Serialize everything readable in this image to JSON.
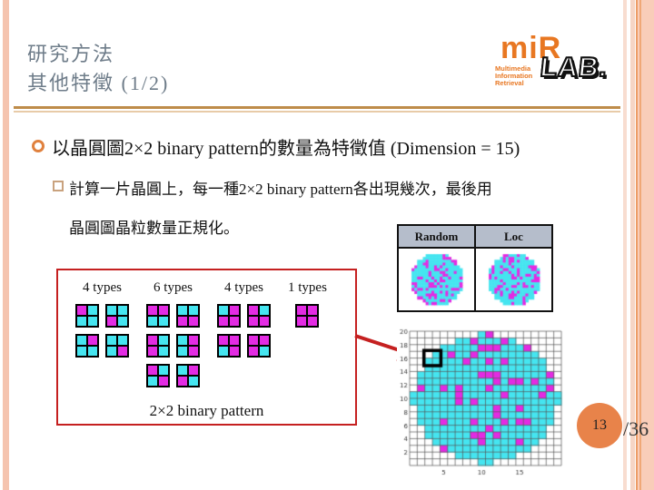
{
  "slide": {
    "title_line1": "研究方法",
    "title_line2": "其他特徵 (1/2)",
    "page_number": "13",
    "page_total": "/36"
  },
  "logo": {
    "name": "miR",
    "sub_lines": [
      "Multimedia",
      "Information",
      "Retrieval"
    ],
    "lab": "LAB."
  },
  "content": {
    "bullet": "以晶圓圖2×2 binary pattern的數量為特徵值 (Dimension = 15)",
    "sub_bullet_line1": "計算一片晶圓上，每一種2×2 binary pattern各出現幾次，最後用",
    "sub_bullet_line2": "晶圓圖晶粒數量正規化。"
  },
  "wafer_table": {
    "headers": [
      "Random",
      "Loc"
    ],
    "maps": [
      {
        "name": "random",
        "seed": 11,
        "defect_rate": 0.3
      },
      {
        "name": "loc",
        "seed": 23,
        "defect_rate": 0.24
      }
    ]
  },
  "pattern_box": {
    "groups": [
      {
        "label": "4 types",
        "columns": 2,
        "patterns": [
          [
            "M",
            "C",
            "C",
            "C"
          ],
          [
            "C",
            "C",
            "M",
            "C"
          ],
          [
            "C",
            "M",
            "C",
            "C"
          ],
          [
            "C",
            "C",
            "C",
            "M"
          ]
        ]
      },
      {
        "label": "6 types",
        "columns": 2,
        "patterns": [
          [
            "M",
            "M",
            "C",
            "C"
          ],
          [
            "C",
            "C",
            "M",
            "M"
          ],
          [
            "M",
            "C",
            "M",
            "C"
          ],
          [
            "C",
            "M",
            "C",
            "M"
          ],
          [
            "M",
            "C",
            "C",
            "M"
          ],
          [
            "C",
            "M",
            "M",
            "C"
          ]
        ]
      },
      {
        "label": "4 types",
        "columns": 2,
        "patterns": [
          [
            "C",
            "M",
            "M",
            "M"
          ],
          [
            "M",
            "C",
            "M",
            "M"
          ],
          [
            "M",
            "M",
            "C",
            "M"
          ],
          [
            "M",
            "M",
            "M",
            "C"
          ]
        ]
      },
      {
        "label": "1 types",
        "columns": 1,
        "patterns": [
          [
            "M",
            "M",
            "M",
            "M"
          ]
        ]
      }
    ],
    "caption": "2×2 binary pattern"
  },
  "wafer_plot": {
    "type": "heatmap",
    "grid": {
      "cols": 20,
      "rows": 20
    },
    "x_ticks": [
      5,
      10,
      15
    ],
    "y_ticks": [
      2,
      4,
      6,
      8,
      10,
      12,
      14,
      16,
      18,
      20
    ],
    "seed": 77,
    "defect_rate": 0.16,
    "highlight": {
      "col_index": 2,
      "row_index": 3,
      "size": 2
    }
  },
  "colors": {
    "cyan": "#45E5F0",
    "magenta": "#E32BE3",
    "accent_red": "#C52020",
    "stripe_salmon": "#F5C4AF",
    "title_gray": "#6E7C89",
    "divider_dark": "#BE8C4A",
    "divider_light": "#E8CBA8",
    "logo_orange": "#E87722",
    "page_circle_orange": "#E8834A",
    "table_header_bg": "#B5BDCB"
  }
}
